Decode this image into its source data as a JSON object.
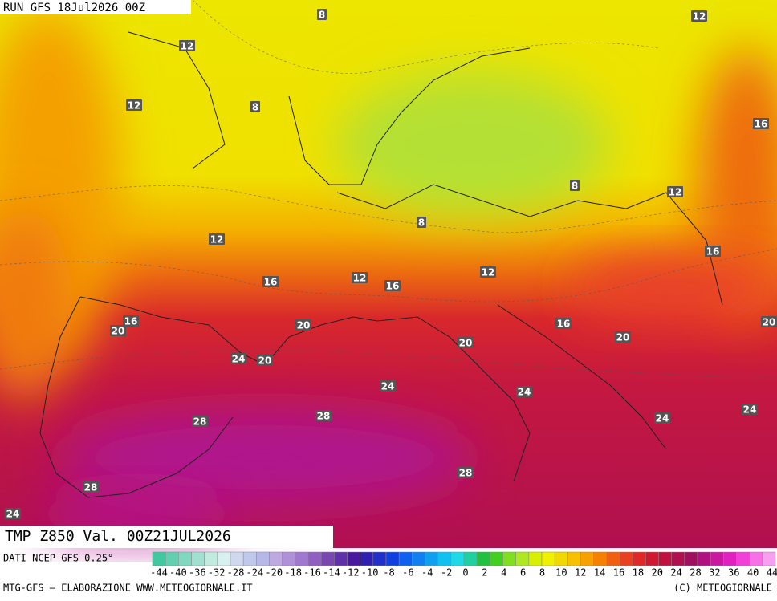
{
  "header": {
    "run": "RUN GFS 18Jul2026 00Z"
  },
  "map": {
    "contour_labels": [
      "8",
      "12",
      "12",
      "12",
      "8",
      "16",
      "8",
      "12",
      "8",
      "12",
      "16",
      "12",
      "12",
      "16",
      "16",
      "16",
      "20",
      "20",
      "16",
      "20",
      "20",
      "20",
      "24",
      "20",
      "24",
      "24",
      "24",
      "24",
      "28",
      "28",
      "28",
      "28",
      "24"
    ]
  },
  "footer": {
    "title": "TMP Z850 Val. 00Z21JUL2026",
    "source": "DATI NCEP GFS 0.25°",
    "scale_labels": [
      "-44",
      "-40",
      "-36",
      "-32",
      "-28",
      "-24",
      "-20",
      "-18",
      "-16",
      "-14",
      "-12",
      "-10",
      "-8",
      "-6",
      "-4",
      "-2",
      "0",
      "2",
      "4",
      "6",
      "8",
      "10",
      "12",
      "14",
      "16",
      "18",
      "20",
      "24",
      "28",
      "32",
      "36",
      "40",
      "44"
    ],
    "credit": "MTG-GFS — ELABORAZIONE WWW.METEOGIORNALE.IT",
    "copyright": "(C) METEOGIORNALE"
  }
}
